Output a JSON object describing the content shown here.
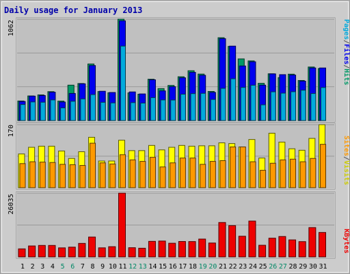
{
  "chart_data": [
    {
      "type": "bar",
      "title": "Daily usage for January 2013",
      "categories": [
        "1",
        "2",
        "3",
        "4",
        "5",
        "6",
        "7",
        "8",
        "9",
        "10",
        "11",
        "12",
        "13",
        "14",
        "15",
        "16",
        "17",
        "18",
        "19",
        "20",
        "21",
        "22",
        "23",
        "24",
        "25",
        "26",
        "27",
        "28",
        "29",
        "30",
        "31"
      ],
      "weekend_days": [
        "5",
        "6",
        "12",
        "13",
        "19",
        "20",
        "26",
        "27"
      ],
      "ylabel_max": "1062",
      "ylim": [
        0,
        1062
      ],
      "series": [
        {
          "name": "Hits",
          "color": "#009966",
          "values": [
            205,
            258,
            269,
            303,
            204,
            371,
            388,
            593,
            304,
            291,
            1062,
            290,
            276,
            433,
            335,
            368,
            459,
            522,
            487,
            305,
            868,
            777,
            646,
            625,
            390,
            490,
            450,
            486,
            420,
            561,
            545
          ]
        },
        {
          "name": "Files",
          "color": "#0000ee",
          "values": [
            200,
            256,
            262,
            297,
            194,
            284,
            385,
            576,
            307,
            294,
            1045,
            300,
            279,
            427,
            311,
            355,
            448,
            505,
            474,
            295,
            858,
            780,
            572,
            616,
            371,
            489,
            481,
            477,
            413,
            551,
            551
          ]
        },
        {
          "name": "Pages",
          "color": "#00aadd",
          "values": [
            168,
            195,
            192,
            216,
            133,
            202,
            227,
            272,
            191,
            185,
            780,
            188,
            183,
            240,
            216,
            215,
            276,
            282,
            285,
            221,
            337,
            438,
            347,
            370,
            165,
            301,
            287,
            302,
            318,
            283,
            346
          ]
        }
      ],
      "legend": [
        "Pages",
        "/",
        "Files",
        "/",
        "Hits"
      ],
      "legend_colors": [
        "#00aadd",
        "#555555",
        "#0000ee",
        "#555555",
        "#009966"
      ]
    },
    {
      "type": "bar",
      "categories": [
        "1",
        "2",
        "3",
        "4",
        "5",
        "6",
        "7",
        "8",
        "9",
        "10",
        "11",
        "12",
        "13",
        "14",
        "15",
        "16",
        "17",
        "18",
        "19",
        "20",
        "21",
        "22",
        "23",
        "24",
        "25",
        "26",
        "27",
        "28",
        "29",
        "30",
        "31"
      ],
      "ylabel_max": "170",
      "ylim": [
        0,
        170
      ],
      "series": [
        {
          "name": "Visits",
          "color": "#ffff00",
          "values": [
            91,
            109,
            112,
            112,
            99,
            79,
            97,
            136,
            72,
            72,
            128,
            100,
            100,
            114,
            102,
            109,
            114,
            112,
            113,
            113,
            121,
            119,
            110,
            130,
            80,
            147,
            123,
            105,
            101,
            133,
            170
          ]
        },
        {
          "name": "Sites",
          "color": "#ff9900",
          "values": [
            65,
            70,
            69,
            68,
            63,
            62,
            60,
            120,
            67,
            64,
            89,
            75,
            71,
            82,
            56,
            67,
            80,
            80,
            63,
            71,
            73,
            110,
            110,
            70,
            47,
            66,
            75,
            77,
            70,
            79,
            117
          ]
        }
      ],
      "legend": [
        "Sites",
        "/",
        "Visits"
      ],
      "legend_colors": [
        "#ff9900",
        "#555555",
        "#cccc00"
      ]
    },
    {
      "type": "bar",
      "categories": [
        "1",
        "2",
        "3",
        "4",
        "5",
        "6",
        "7",
        "8",
        "9",
        "10",
        "11",
        "12",
        "13",
        "14",
        "15",
        "16",
        "17",
        "18",
        "19",
        "20",
        "21",
        "22",
        "23",
        "24",
        "25",
        "26",
        "27",
        "28",
        "29",
        "30",
        "31"
      ],
      "ylabel_max": "26035",
      "ylim": [
        0,
        26035
      ],
      "series": [
        {
          "name": "KBytes",
          "color": "#ee0000",
          "values": [
            3280,
            4470,
            4680,
            4680,
            3690,
            3980,
            5510,
            8110,
            3700,
            4170,
            26035,
            3750,
            3540,
            6350,
            6470,
            5570,
            6290,
            6260,
            7280,
            5670,
            14050,
            12770,
            8440,
            14630,
            4750,
            7640,
            8330,
            6950,
            6240,
            11980,
            9980
          ]
        }
      ],
      "legend": [
        "KBytes"
      ],
      "legend_colors": [
        "#ee0000"
      ]
    }
  ]
}
